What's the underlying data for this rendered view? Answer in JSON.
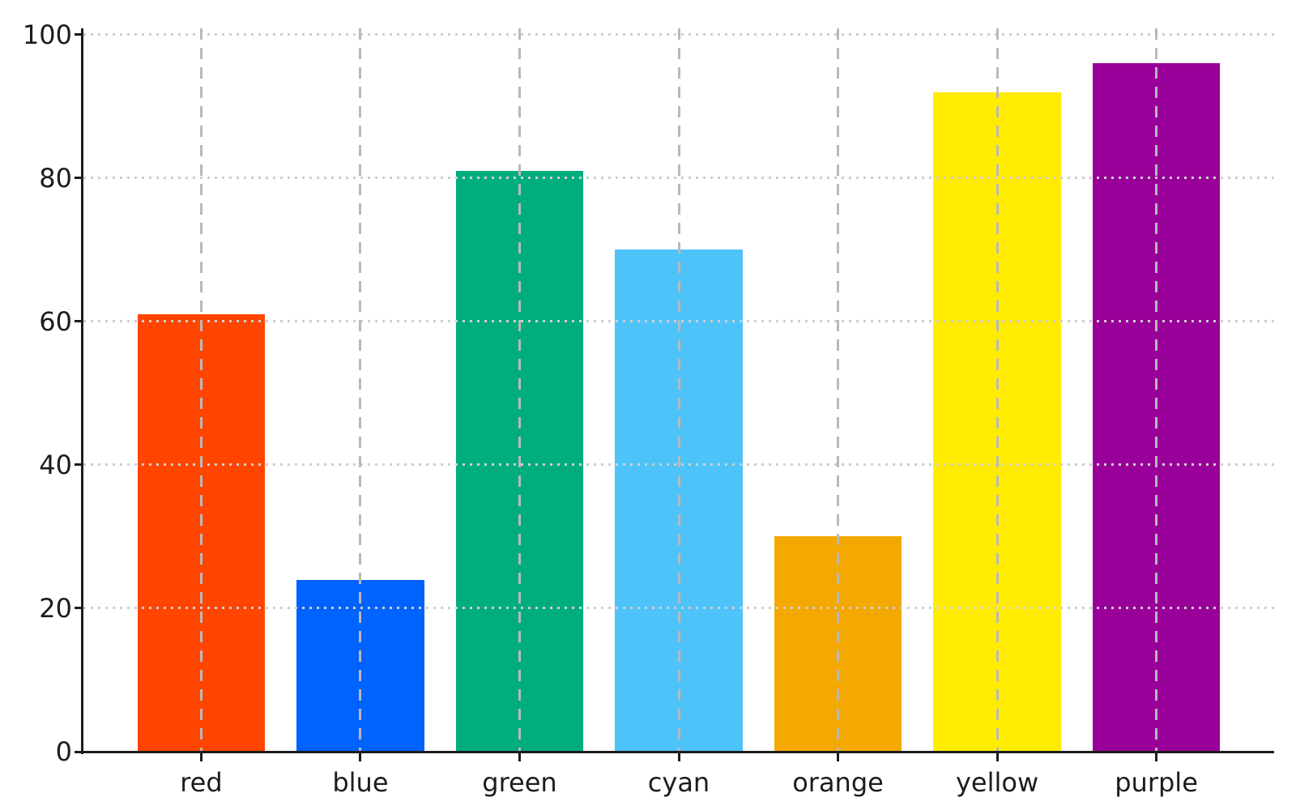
{
  "chart_data": {
    "type": "bar",
    "title": "",
    "xlabel": "",
    "ylabel": "",
    "categories": [
      "red",
      "blue",
      "green",
      "cyan",
      "orange",
      "yellow",
      "purple"
    ],
    "values": [
      61,
      24,
      81,
      70,
      30,
      92,
      96
    ],
    "bar_colors": [
      "#FF4500",
      "#0062FF",
      "#00AD7D",
      "#4DC3FA",
      "#F4A902",
      "#FFEC00",
      "#990099"
    ],
    "ylim": [
      0,
      100.9
    ],
    "yticks": [
      0,
      20,
      40,
      60,
      80,
      100
    ],
    "bar_width_ratio": 0.8,
    "x_margin_units": 0.74,
    "legend": "none",
    "grid": {
      "horizontal_style": "dotted",
      "vertical_style": "dashed",
      "drawn_above_bars": true
    }
  },
  "style_colors": {
    "background": "#ffffff",
    "spine": "#1c1c1c",
    "tick": "#1c1c1c",
    "tick_label": "#1c1c1c",
    "grid_horizontal": "#cfcfcf",
    "grid_vertical": "#b9b9b9"
  }
}
